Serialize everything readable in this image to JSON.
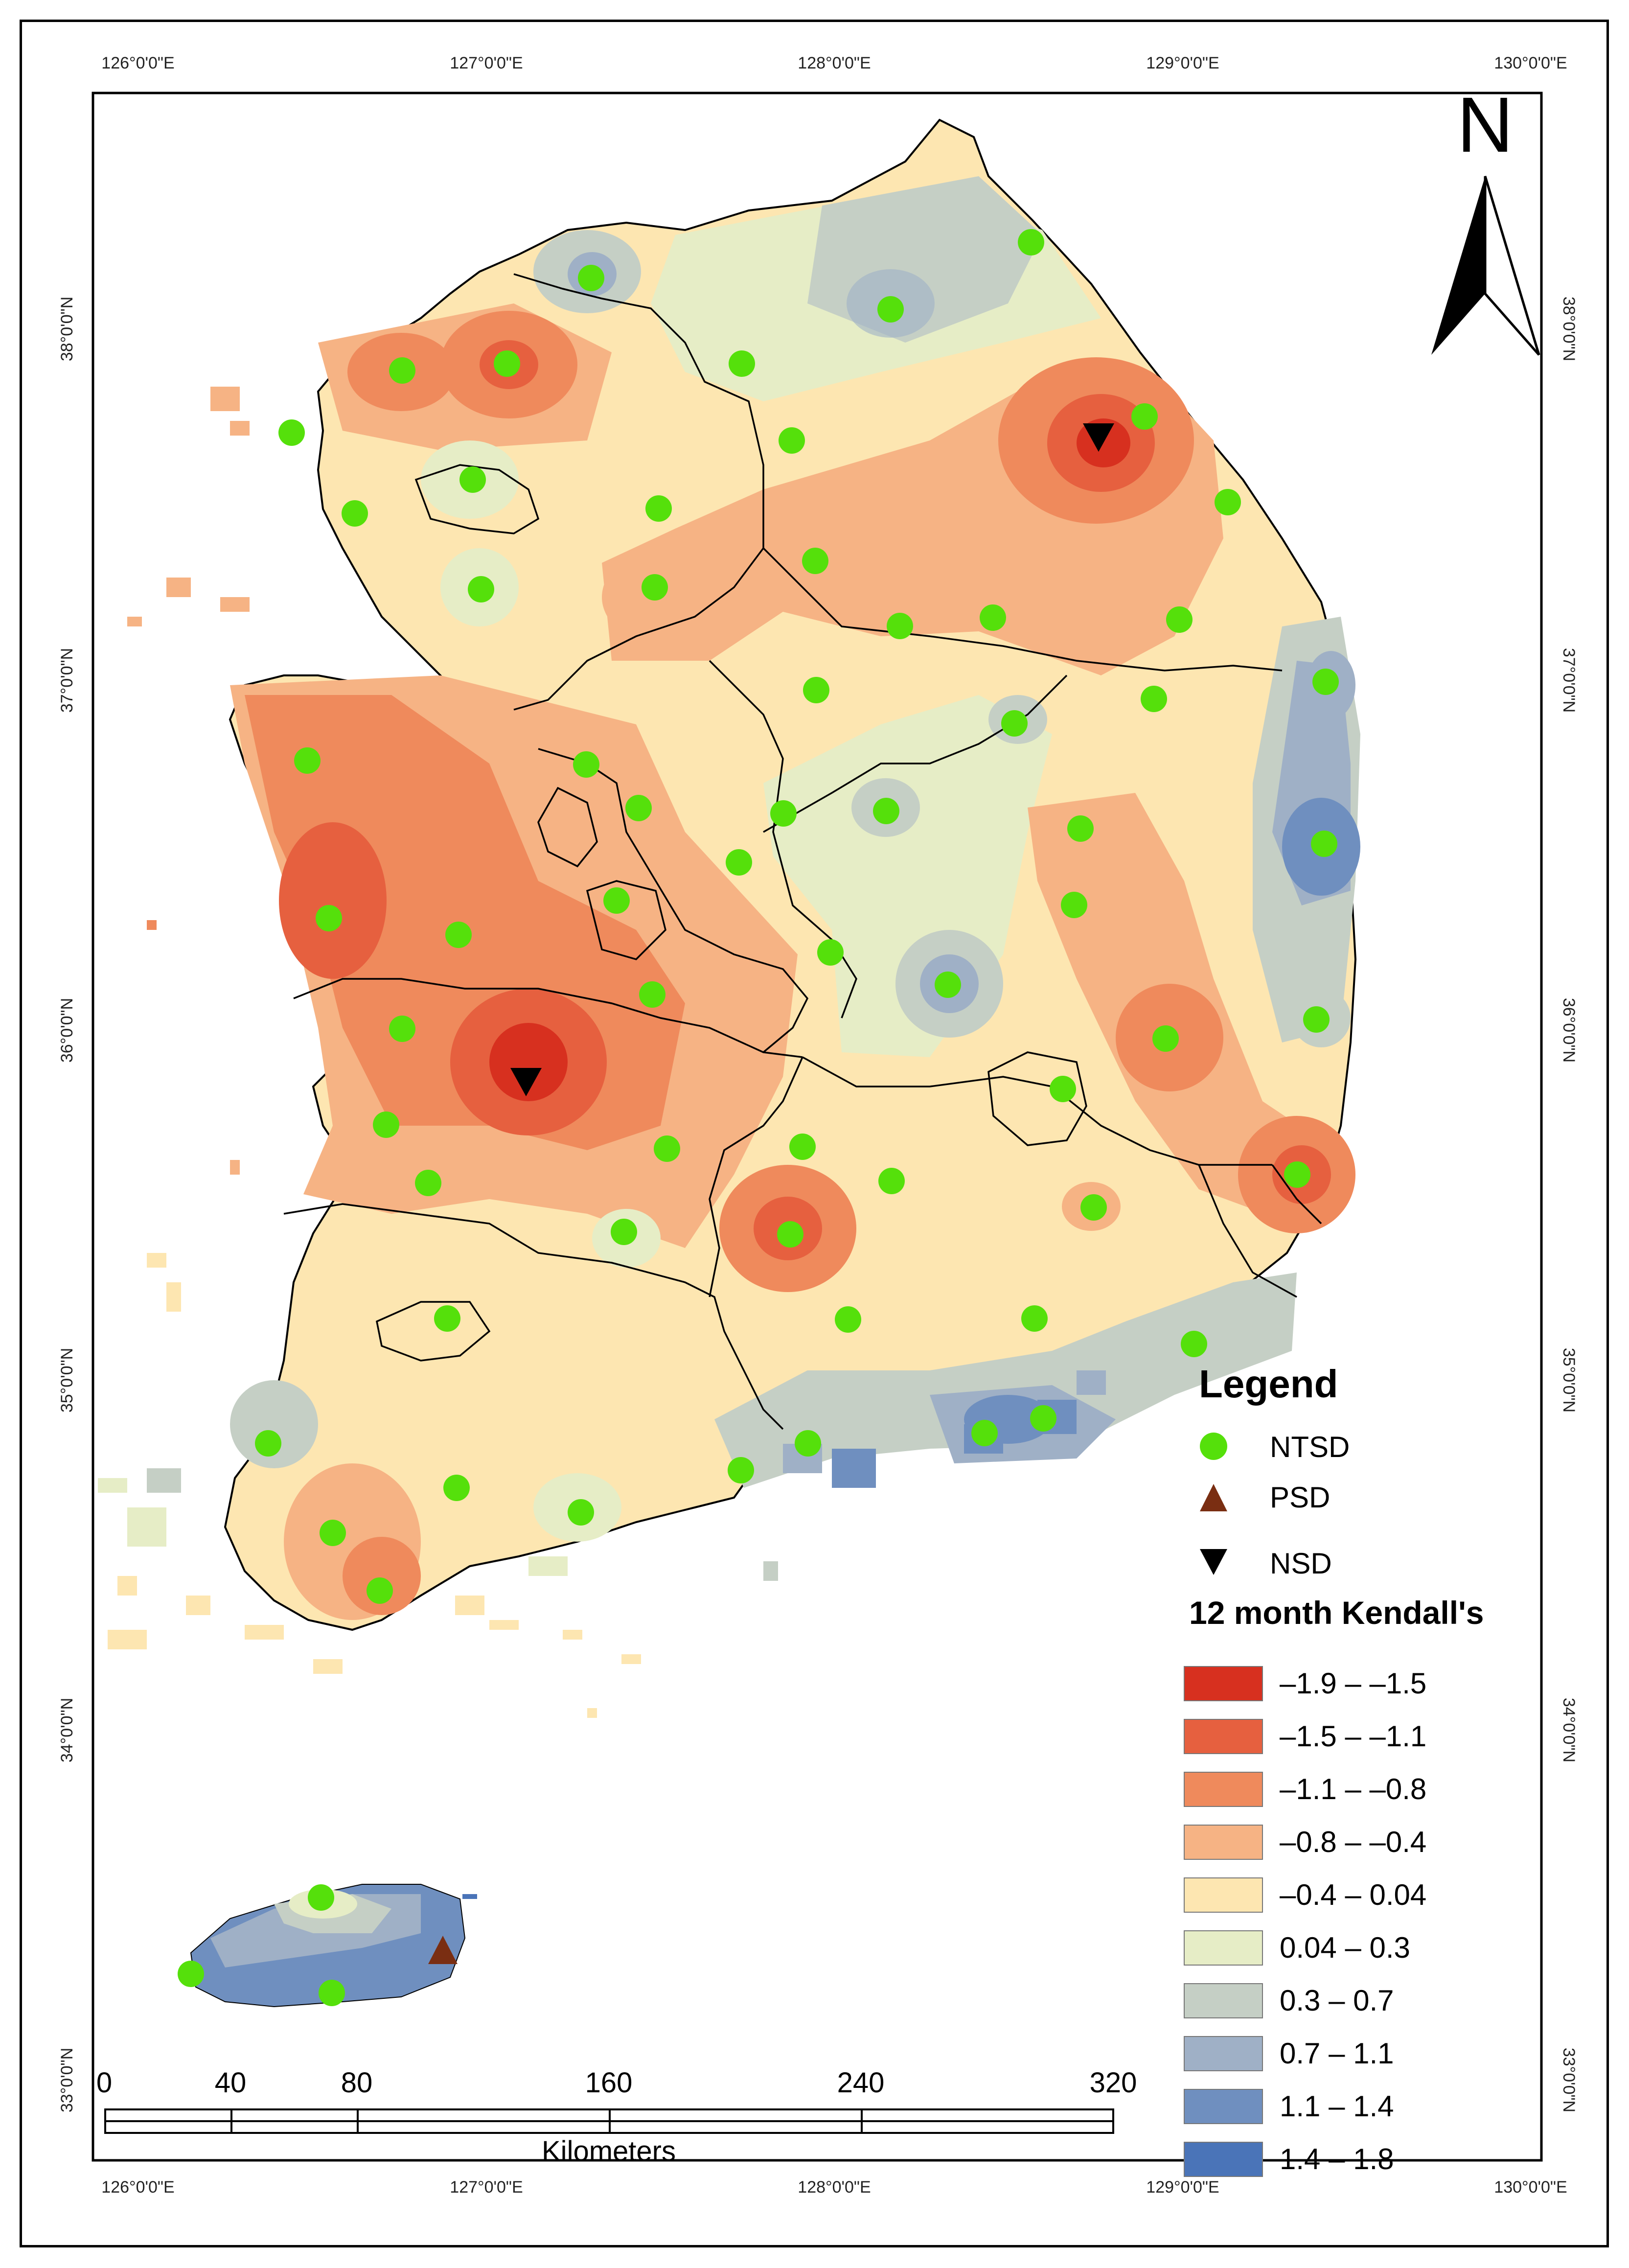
{
  "map": {
    "top_lon_labels": [
      "126°0'0\"E",
      "127°0'0\"E",
      "128°0'0\"E",
      "129°0'0\"E",
      "130°0'0\"E"
    ],
    "bottom_lon_labels": [
      "126°0'0\"E",
      "127°0'0\"E",
      "128°0'0\"E",
      "129°0'0\"E",
      "130°0'0\"E"
    ],
    "left_lat_labels": [
      "38°0'0\"N",
      "37°0'0\"N",
      "36°0'0\"N",
      "35°0'0\"N",
      "34°0'0\"N",
      "33°0'0\"N"
    ],
    "right_lat_labels": [
      "38°0'0\"N",
      "37°0'0\"N",
      "36°0'0\"N",
      "35°0'0\"N",
      "34°0'0\"N",
      "33°0'0\"N"
    ],
    "north_arrow": {
      "label": "N",
      "icon": "north-arrow-icon"
    },
    "scale_bar": {
      "ticks": [
        "0",
        "40",
        "80",
        "160",
        "240",
        "320"
      ],
      "unit": "Kilometers"
    },
    "legend": {
      "title": "Legend",
      "symbols": [
        {
          "label": "NTSD",
          "icon": "green-circle-icon",
          "color": "#55e00b"
        },
        {
          "label": "PSD",
          "icon": "brown-up-triangle-icon",
          "color": "#7a2e12"
        },
        {
          "label": "NSD",
          "icon": "black-down-triangle-icon",
          "color": "#000000"
        }
      ],
      "class_title": "12 month Kendall's",
      "classes": [
        {
          "label": "–1.9 – –1.5",
          "color": "#d7301f"
        },
        {
          "label": "–1.5 – –1.1",
          "color": "#e6603f"
        },
        {
          "label": "–1.1 – –0.8",
          "color": "#ef8a5c"
        },
        {
          "label": "–0.8 – –0.4",
          "color": "#f6b384"
        },
        {
          "label": "–0.4 – 0.04",
          "color": "#fde6b1"
        },
        {
          "label": "0.04 – 0.3",
          "color": "#e6edc6"
        },
        {
          "label": "0.3 – 0.7",
          "color": "#c5cfc5"
        },
        {
          "label": "0.7 – 1.1",
          "color": "#9fb0c6"
        },
        {
          "label": "1.1 – 1.4",
          "color": "#6f8fbf"
        },
        {
          "label": "1.4 – 1.8",
          "color": "#4a74b8"
        }
      ]
    },
    "stations": {
      "ntsd_count": 61,
      "psd_count": 1,
      "nsd_count": 2
    }
  }
}
